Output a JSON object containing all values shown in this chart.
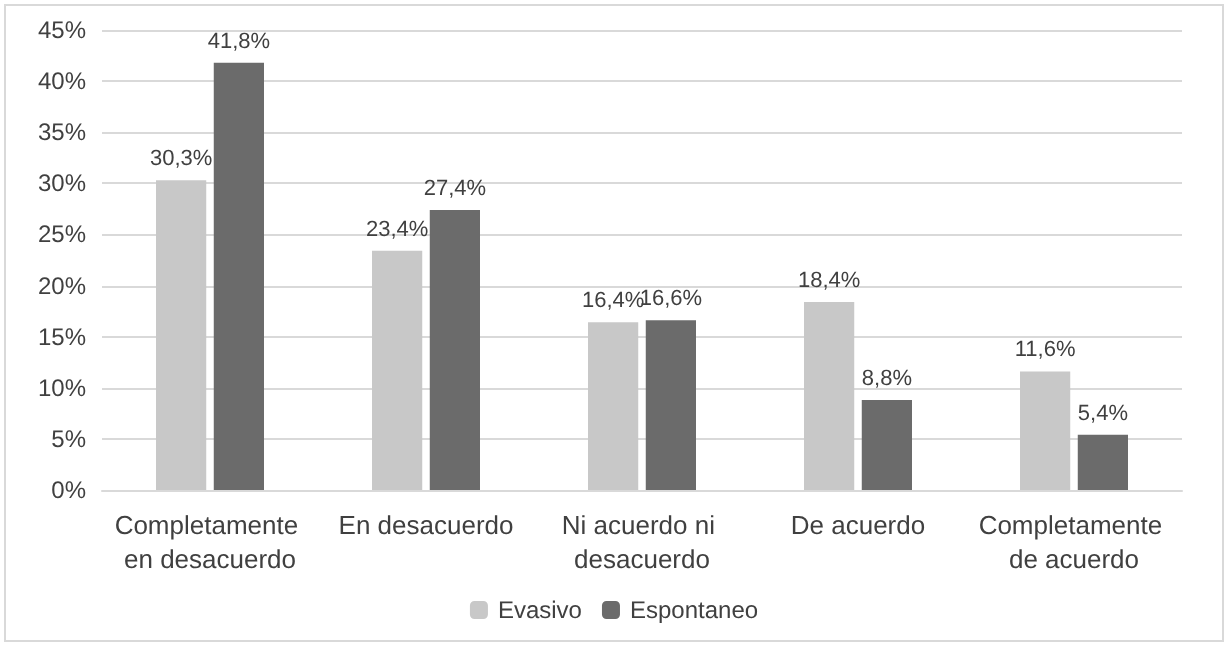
{
  "chart_data": {
    "type": "bar",
    "categories": [
      "Completamente en desacuerdo",
      "En desacuerdo",
      "Ni acuerdo ni desacuerdo",
      "De acuerdo",
      "Completamente de acuerdo"
    ],
    "series": [
      {
        "name": "Evasivo",
        "color": "#c8c8c8",
        "values": [
          30.3,
          23.4,
          16.4,
          18.4,
          11.6
        ],
        "value_labels": [
          "30,3%",
          "23,4%",
          "16,4%",
          "18,4%",
          "11,6%"
        ]
      },
      {
        "name": "Espontaneo",
        "color": "#6b6b6b",
        "values": [
          41.8,
          27.4,
          16.6,
          8.8,
          5.4
        ],
        "value_labels": [
          "41,8%",
          "27,4%",
          "16,6%",
          "8,8%",
          "5,4%"
        ]
      }
    ],
    "ylim": [
      0,
      45
    ],
    "yticks": [
      {
        "value": 0,
        "label": "0%"
      },
      {
        "value": 5,
        "label": "5%"
      },
      {
        "value": 10,
        "label": "10%"
      },
      {
        "value": 15,
        "label": "15%"
      },
      {
        "value": 20,
        "label": "20%"
      },
      {
        "value": 25,
        "label": "25%"
      },
      {
        "value": 30,
        "label": "30%"
      },
      {
        "value": 35,
        "label": "35%"
      },
      {
        "value": 40,
        "label": "40%"
      },
      {
        "value": 45,
        "label": "45%"
      }
    ],
    "grid": "y",
    "legend": "bottom"
  }
}
